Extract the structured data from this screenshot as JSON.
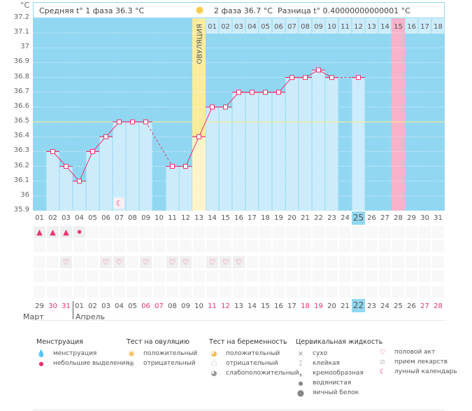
{
  "header": {
    "unit": "°C",
    "phase1": "Средняя t° 1 фаза 36.3 °C",
    "phase2": "2 фаза 36.7 °C",
    "difference": "Разница t° 0.40000000000001 °C"
  },
  "colors": {
    "plot_bg": "#92d7f2",
    "bar": "#cdecfb",
    "line": "#e8336b",
    "ovulation": "#fbec9c",
    "expected_period": "#f7b3c9",
    "coverline": "#f5ec93",
    "weekend_text": "#e8336b"
  },
  "chart_data": {
    "type": "line",
    "title": "",
    "ylabel": "°C",
    "ylim": [
      35.9,
      37.2
    ],
    "yticks": [
      "37.2",
      "37.1",
      "37",
      "36.9",
      "36.8",
      "36.7",
      "36.6",
      "36.5",
      "36.4",
      "36.3",
      "36.2",
      "36.1",
      "36",
      "35.9"
    ],
    "cycle_days": [
      "01",
      "02",
      "03",
      "04",
      "05",
      "06",
      "07",
      "08",
      "09",
      "10",
      "11",
      "12",
      "13",
      "14",
      "15",
      "16",
      "17",
      "18",
      "19",
      "20",
      "21",
      "22",
      "23",
      "24",
      "25",
      "26",
      "27",
      "28",
      "29",
      "30",
      "31"
    ],
    "current_cycle_day": "25",
    "values": [
      null,
      36.3,
      36.2,
      36.1,
      36.3,
      36.4,
      36.5,
      36.5,
      36.5,
      null,
      36.2,
      36.2,
      36.4,
      36.6,
      36.6,
      36.7,
      36.7,
      36.7,
      36.7,
      36.8,
      36.8,
      36.85,
      36.8,
      null,
      36.8,
      null,
      null,
      null,
      null,
      null,
      null
    ],
    "coverline": 36.5,
    "ovulation_day": "13",
    "ovulation_label": "ОВУЛЯЦИЯ",
    "expected_period_day": "28",
    "next_cycle_days": [
      "01",
      "02",
      "03",
      "04",
      "05",
      "06",
      "07",
      "08",
      "09",
      "10",
      "11",
      "12",
      "13",
      "14",
      "15",
      "16",
      "17",
      "18"
    ],
    "next_cycle_highlight": "15",
    "moon_marker_day": "07"
  },
  "rows": {
    "menstruation": {
      "03": "heavy",
      "01": "heavy",
      "02": "heavy",
      "04": "light"
    },
    "intercourse_days": [
      "03",
      "06",
      "07",
      "09",
      "11",
      "12",
      "14",
      "15",
      "16"
    ]
  },
  "dates": {
    "labels": [
      "29",
      "30",
      "31",
      "01",
      "02",
      "03",
      "04",
      "05",
      "06",
      "07",
      "08",
      "09",
      "10",
      "11",
      "12",
      "13",
      "14",
      "15",
      "16",
      "17",
      "18",
      "19",
      "20",
      "21",
      "22",
      "23",
      "24",
      "25",
      "26",
      "27",
      "28"
    ],
    "weekend": [
      false,
      true,
      true,
      false,
      false,
      false,
      false,
      false,
      true,
      true,
      false,
      false,
      false,
      true,
      true,
      false,
      false,
      false,
      false,
      false,
      true,
      true,
      false,
      false,
      false,
      false,
      false,
      false,
      false,
      true,
      true
    ],
    "today": "22",
    "month1": "Март",
    "month2": "Апрель"
  },
  "legend": {
    "menstruation": {
      "title": "Менструация",
      "items": [
        "менструация",
        "небольшие выделения"
      ]
    },
    "ovulation_test": {
      "title": "Тест на овуляцию",
      "items": [
        "положительный",
        "отрицательный"
      ]
    },
    "pregnancy_test": {
      "title": "Тест на беременность",
      "items": [
        "положительный",
        "отрицательный",
        "слабоположительный"
      ]
    },
    "cervical_fluid": {
      "title": "Цервикальная жидкость",
      "items": [
        "сухо",
        "клейкая",
        "кремообразная",
        "водянистая",
        "яичный белок"
      ]
    },
    "other": {
      "items": [
        "половой акт",
        "прием лекарств",
        "лунный календарь"
      ]
    }
  }
}
